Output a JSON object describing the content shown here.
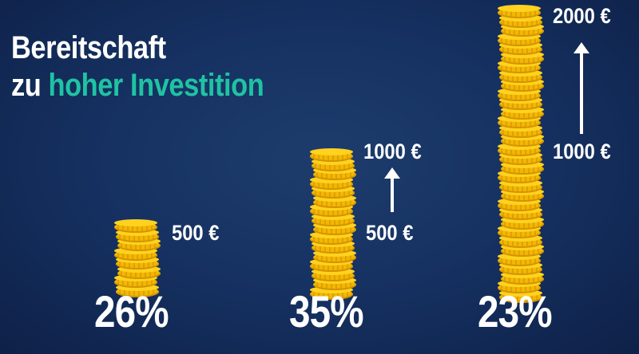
{
  "title": {
    "line1": "Bereitschaft",
    "line2_a": "zu ",
    "line2_b": "hoher Investition"
  },
  "colors": {
    "background": "#163263",
    "accent": "#1fc3a3",
    "coin": "#f2b705"
  },
  "chart_data": {
    "type": "bar",
    "categories": [
      "500 €",
      "500 € → 1000 €",
      "1000 € → 2000 €"
    ],
    "values": [
      26,
      35,
      23
    ],
    "value_labels": [
      "26%",
      "35%",
      "23%"
    ],
    "amount_labels": [
      {
        "low": "500 €"
      },
      {
        "low": "500 €",
        "high": "1000 €"
      },
      {
        "low": "1000 €",
        "high": "2000 €"
      }
    ]
  }
}
